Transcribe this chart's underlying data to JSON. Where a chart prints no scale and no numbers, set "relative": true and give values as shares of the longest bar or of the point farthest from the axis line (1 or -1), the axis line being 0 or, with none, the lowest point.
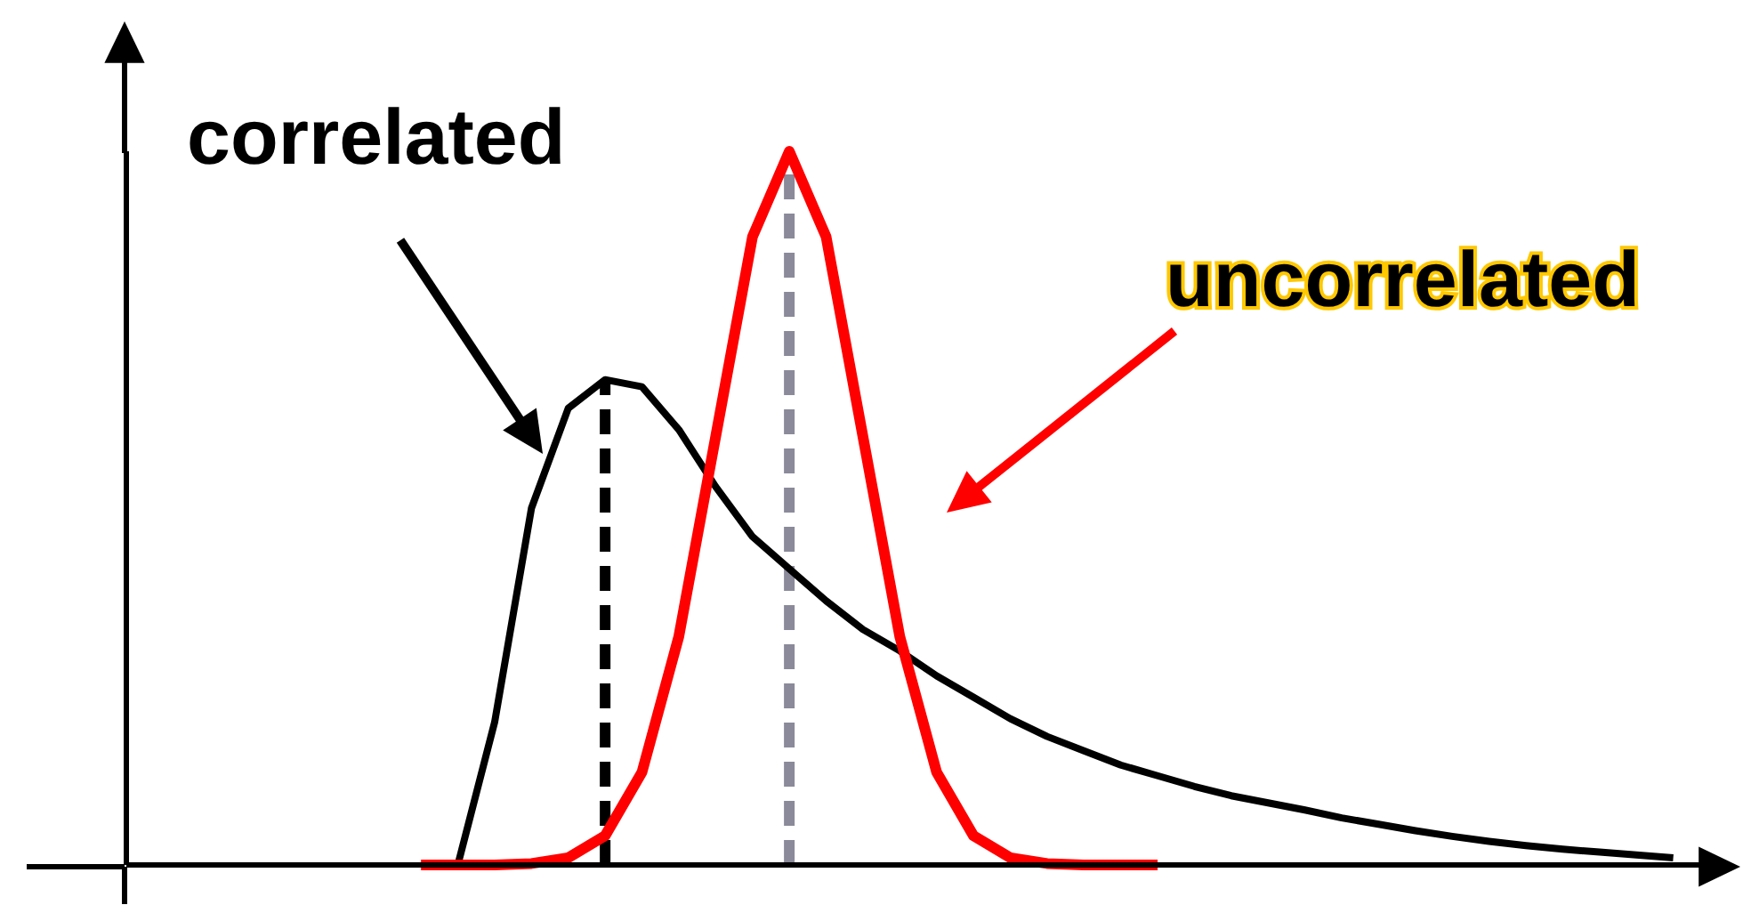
{
  "chart_data": {
    "type": "line",
    "relative": true,
    "marker": "none",
    "categories": [
      null,
      null,
      null,
      null,
      null,
      null,
      null,
      null,
      null,
      null,
      null,
      null,
      null,
      null,
      null,
      null,
      null,
      null,
      null,
      null,
      null,
      null,
      null,
      null,
      null,
      null,
      null,
      null,
      null,
      null,
      null,
      null,
      null,
      null,
      null,
      null,
      null,
      null,
      null,
      null,
      null,
      null,
      null,
      null
    ],
    "series": [
      {
        "name": "correlated",
        "color": "#000000",
        "values": [
          null,
          null,
          null,
          null,
          null,
          null,
          null,
          null,
          null,
          0,
          0.2,
          0.5,
          0.64,
          0.68,
          0.67,
          0.61,
          0.53,
          0.46,
          0.415,
          0.37,
          0.33,
          0.3,
          0.265,
          0.235,
          0.205,
          0.18,
          0.16,
          0.14,
          0.125,
          0.11,
          0.097,
          0.087,
          0.077,
          0.066,
          0.057,
          0.048,
          0.04,
          0.033,
          0.027,
          0.022,
          0.018,
          0.014,
          0.01,
          null
        ]
      },
      {
        "name": "uncorrelated",
        "color": "#ff0000",
        "values": [
          null,
          null,
          null,
          null,
          null,
          null,
          null,
          null,
          0,
          0,
          0,
          0.002,
          0.01,
          0.041,
          0.13,
          0.32,
          0.6,
          0.88,
          1,
          0.88,
          0.6,
          0.32,
          0.13,
          0.041,
          0.01,
          0.002,
          0,
          0,
          0,
          null,
          null,
          null,
          null,
          null,
          null,
          null,
          null,
          null,
          null,
          null,
          null,
          null,
          null,
          null
        ]
      }
    ]
  }
}
